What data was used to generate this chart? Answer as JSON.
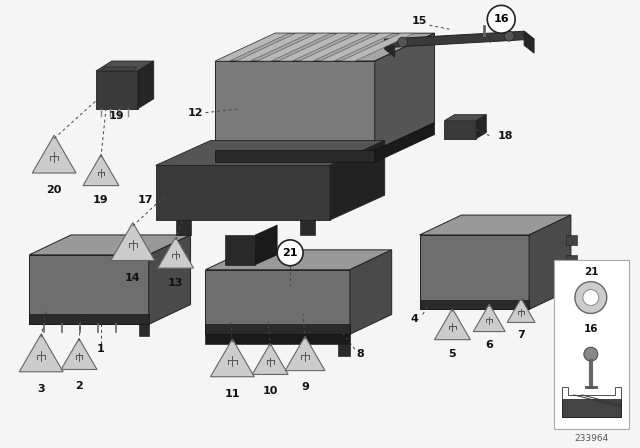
{
  "bg_color": "#f5f5f5",
  "fig_width": 6.4,
  "fig_height": 4.48,
  "dpi": 100,
  "diagram_number": "233964",
  "colors": {
    "box_face": "#7a7a7a",
    "box_top": "#a0a0a0",
    "box_right": "#555555",
    "box_dark": "#3a3a3a",
    "box_dark_top": "#555555",
    "box_dark_right": "#2a2a2a",
    "connector": "#2a2a2a",
    "line": "#444444",
    "tri_face": "#cccccc",
    "tri_edge": "#666666",
    "plug_color": "#555555"
  }
}
